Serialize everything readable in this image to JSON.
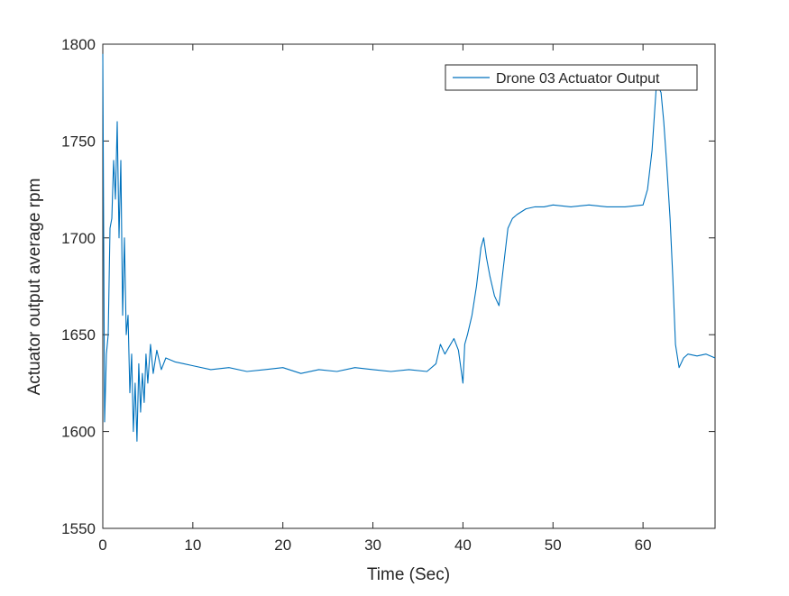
{
  "chart_data": {
    "type": "line",
    "title": "",
    "xlabel": "Time (Sec)",
    "ylabel": "Actuator output average rpm",
    "xlim": [
      0,
      68
    ],
    "ylim": [
      1550,
      1800
    ],
    "xticks": [
      0,
      10,
      20,
      30,
      40,
      50,
      60
    ],
    "yticks": [
      1550,
      1600,
      1650,
      1700,
      1750,
      1800
    ],
    "x_tick_labels": [
      "0",
      "10",
      "20",
      "30",
      "40",
      "50",
      "60"
    ],
    "y_tick_labels": [
      "1550",
      "1600",
      "1650",
      "1700",
      "1750",
      "1800"
    ],
    "grid": false,
    "legend_position": "top-right",
    "series": [
      {
        "name": "Drone 03 Actuator Output",
        "color": "#0072BD",
        "x": [
          0,
          0.2,
          0.4,
          0.6,
          0.8,
          1.0,
          1.2,
          1.4,
          1.6,
          1.8,
          2.0,
          2.2,
          2.4,
          2.6,
          2.8,
          3.0,
          3.2,
          3.4,
          3.6,
          3.8,
          4.0,
          4.2,
          4.4,
          4.6,
          4.8,
          5.0,
          5.3,
          5.6,
          6.0,
          6.5,
          7.0,
          8,
          9,
          10,
          12,
          14,
          16,
          18,
          20,
          22,
          24,
          26,
          28,
          30,
          32,
          34,
          36,
          37,
          37.5,
          38,
          39,
          39.5,
          40,
          40.2,
          40.5,
          41,
          41.5,
          42,
          42.3,
          42.6,
          43,
          43.5,
          44,
          44.5,
          45,
          45.5,
          46,
          47,
          48,
          49,
          50,
          52,
          54,
          56,
          58,
          60,
          60.5,
          61,
          61.5,
          62,
          62.3,
          62.6,
          63,
          63.3,
          63.6,
          64,
          64.5,
          65,
          66,
          67,
          68
        ],
        "values": [
          1795,
          1605,
          1640,
          1650,
          1705,
          1710,
          1740,
          1720,
          1760,
          1700,
          1740,
          1660,
          1700,
          1650,
          1660,
          1620,
          1640,
          1600,
          1625,
          1595,
          1635,
          1610,
          1630,
          1615,
          1640,
          1625,
          1645,
          1630,
          1642,
          1632,
          1638,
          1636,
          1635,
          1634,
          1632,
          1633,
          1631,
          1632,
          1633,
          1630,
          1632,
          1631,
          1633,
          1632,
          1631,
          1632,
          1631,
          1635,
          1645,
          1640,
          1648,
          1642,
          1625,
          1645,
          1650,
          1660,
          1675,
          1695,
          1700,
          1690,
          1680,
          1670,
          1665,
          1685,
          1705,
          1710,
          1712,
          1715,
          1716,
          1716,
          1717,
          1716,
          1717,
          1716,
          1716,
          1717,
          1725,
          1745,
          1780,
          1775,
          1760,
          1740,
          1710,
          1680,
          1645,
          1633,
          1638,
          1640,
          1639,
          1640,
          1638
        ]
      }
    ]
  }
}
